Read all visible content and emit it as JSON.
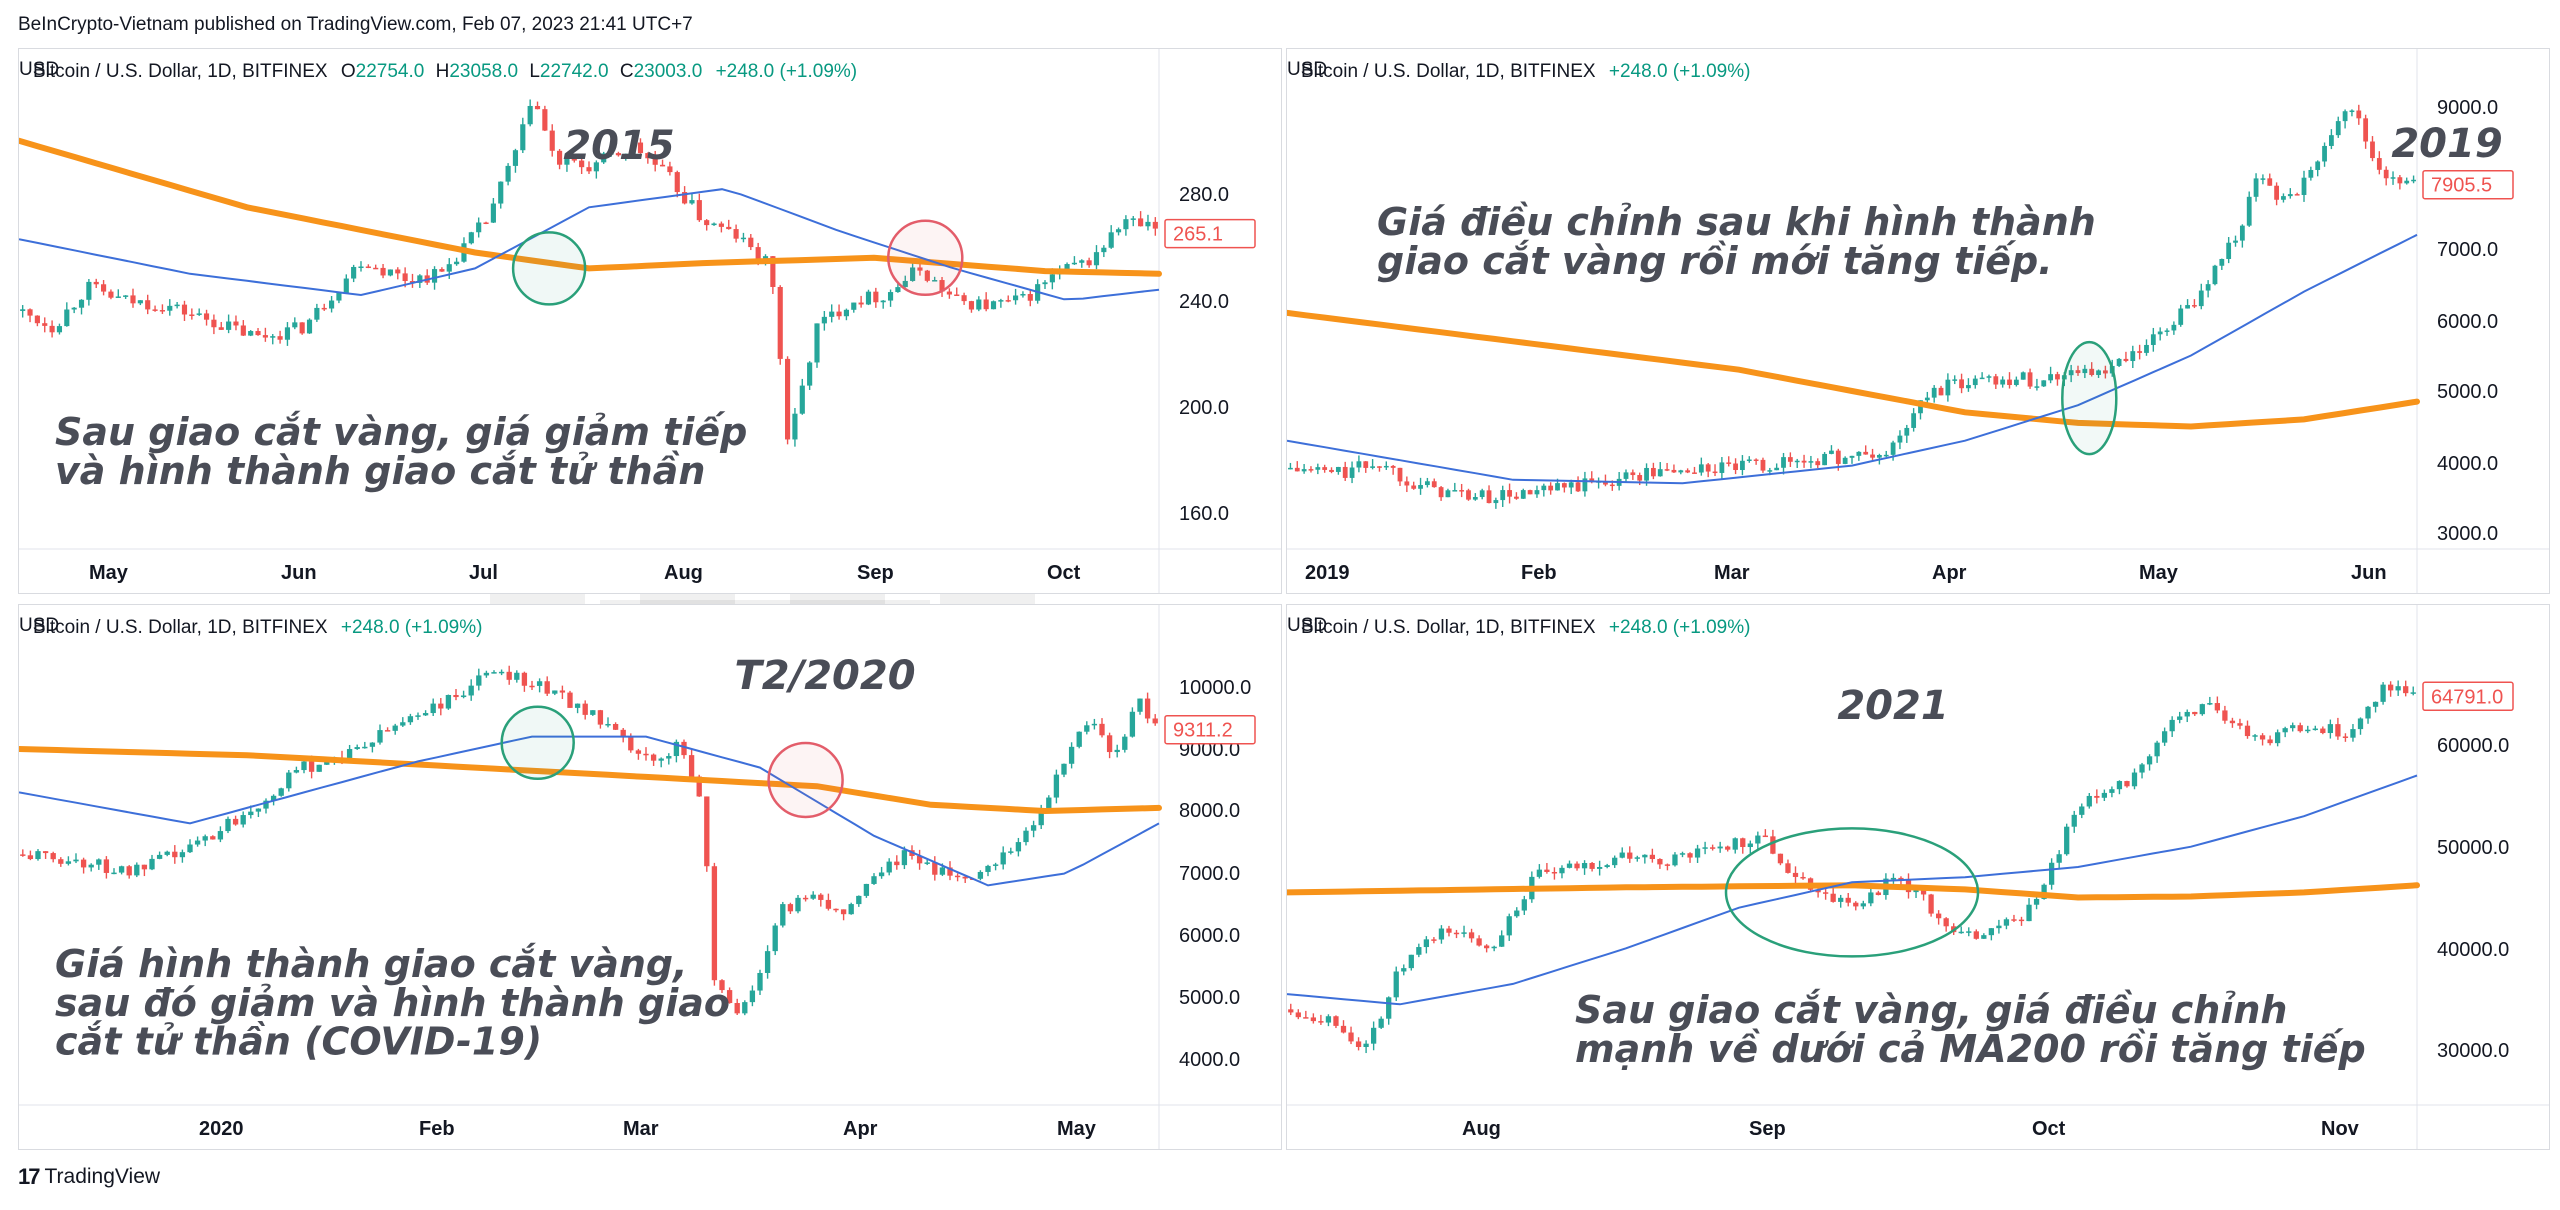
{
  "published": "BeInCrypto-Vietnam published on TradingView.com, Feb 07, 2023 21:41 UTC+7",
  "footer": {
    "brand": "TradingView",
    "logo_icon": "tradingview-logo-icon"
  },
  "watermark": {
    "line1": "be in",
    "line2": "crypto"
  },
  "colors": {
    "up": "#26a69a",
    "down": "#ef5350",
    "ma200": "#f7931a",
    "ma50": "#3d6fd9",
    "gold_cross": "#2aa07a",
    "death_cross": "#e35d6a"
  },
  "chart_data": [
    {
      "type": "candlestick",
      "symbol": "Bitcoin / U.S. Dollar, 1D, BITFINEX",
      "ohlc": {
        "o_label": "O",
        "o": "22754.0",
        "h_label": "H",
        "h": "23058.0",
        "l_label": "L",
        "l": "22742.0",
        "c_label": "C",
        "c": "23003.0"
      },
      "change": "+248.0 (+1.09%)",
      "currency": "USD",
      "year_label": "2015",
      "annotation": [
        "Sau giao cắt vàng, giá giảm tiếp",
        "và hình thành giao cắt tử thần"
      ],
      "x_ticks": [
        "May",
        "Jun",
        "Jul",
        "Aug",
        "Sep",
        "Oct"
      ],
      "y_ticks": [
        "280.0",
        "240.0",
        "200.0",
        "160.0"
      ],
      "y_range": [
        145,
        330
      ],
      "last_price": "265.1",
      "price_path": [
        [
          0,
          236
        ],
        [
          0.03,
          230
        ],
        [
          0.06,
          245
        ],
        [
          0.09,
          240
        ],
        [
          0.13,
          238
        ],
        [
          0.17,
          232
        ],
        [
          0.21,
          226
        ],
        [
          0.25,
          230
        ],
        [
          0.3,
          255
        ],
        [
          0.34,
          248
        ],
        [
          0.37,
          250
        ],
        [
          0.41,
          270
        ],
        [
          0.44,
          300
        ],
        [
          0.45,
          318
        ],
        [
          0.47,
          292
        ],
        [
          0.5,
          290
        ],
        [
          0.54,
          298
        ],
        [
          0.57,
          286
        ],
        [
          0.6,
          270
        ],
        [
          0.63,
          264
        ],
        [
          0.66,
          252
        ],
        [
          0.675,
          185
        ],
        [
          0.7,
          230
        ],
        [
          0.73,
          240
        ],
        [
          0.76,
          242
        ],
        [
          0.79,
          252
        ],
        [
          0.82,
          240
        ],
        [
          0.85,
          238
        ],
        [
          0.88,
          240
        ],
        [
          0.91,
          250
        ],
        [
          0.94,
          255
        ],
        [
          0.97,
          270
        ],
        [
          1.0,
          266
        ]
      ],
      "ma200": [
        [
          0,
          300
        ],
        [
          0.2,
          275
        ],
        [
          0.4,
          258
        ],
        [
          0.5,
          252
        ],
        [
          0.6,
          254
        ],
        [
          0.75,
          256
        ],
        [
          0.9,
          251
        ],
        [
          1.0,
          250
        ]
      ],
      "ma50": [
        [
          0,
          263
        ],
        [
          0.15,
          250
        ],
        [
          0.3,
          242
        ],
        [
          0.4,
          252
        ],
        [
          0.5,
          275
        ],
        [
          0.62,
          282
        ],
        [
          0.72,
          266
        ],
        [
          0.82,
          252
        ],
        [
          0.92,
          240
        ],
        [
          1.0,
          244
        ]
      ],
      "circles": [
        {
          "kind": "gold",
          "t": 0.465,
          "price": 252
        },
        {
          "kind": "death",
          "t": 0.795,
          "price": 256
        }
      ]
    },
    {
      "type": "candlestick",
      "symbol": "Bitcoin / U.S. Dollar, 1D, BITFINEX",
      "change": "+248.0 (+1.09%)",
      "currency": "USD",
      "year_label": "2019",
      "annotation": [
        "Giá điều chỉnh sau khi hình thành",
        "giao cắt vàng rồi mới tăng tiếp."
      ],
      "x_ticks": [
        "2019",
        "Feb",
        "Mar",
        "Apr",
        "May",
        "Jun"
      ],
      "y_ticks": [
        "9000.0",
        "8000.0",
        "7000.0",
        "6000.0",
        "5000.0",
        "4000.0",
        "3000.0"
      ],
      "y_range": [
        2600,
        9600
      ],
      "last_price": "7905.5",
      "price_path": [
        [
          0,
          3900
        ],
        [
          0.05,
          3850
        ],
        [
          0.08,
          4000
        ],
        [
          0.12,
          3650
        ],
        [
          0.17,
          3500
        ],
        [
          0.22,
          3550
        ],
        [
          0.27,
          3700
        ],
        [
          0.32,
          3850
        ],
        [
          0.37,
          3900
        ],
        [
          0.42,
          3950
        ],
        [
          0.47,
          4050
        ],
        [
          0.53,
          4100
        ],
        [
          0.57,
          5000
        ],
        [
          0.62,
          5200
        ],
        [
          0.67,
          5150
        ],
        [
          0.7,
          5350
        ],
        [
          0.72,
          5200
        ],
        [
          0.76,
          5600
        ],
        [
          0.8,
          6200
        ],
        [
          0.84,
          7200
        ],
        [
          0.86,
          8000
        ],
        [
          0.88,
          7700
        ],
        [
          0.9,
          7900
        ],
        [
          0.92,
          8600
        ],
        [
          0.94,
          9100
        ],
        [
          0.96,
          8300
        ],
        [
          0.98,
          7900
        ],
        [
          1.0,
          7905
        ]
      ],
      "ma200": [
        [
          0,
          6100
        ],
        [
          0.2,
          5700
        ],
        [
          0.4,
          5300
        ],
        [
          0.6,
          4700
        ],
        [
          0.7,
          4550
        ],
        [
          0.8,
          4500
        ],
        [
          0.9,
          4600
        ],
        [
          1.0,
          4850
        ]
      ],
      "ma50": [
        [
          0,
          4300
        ],
        [
          0.2,
          3750
        ],
        [
          0.35,
          3700
        ],
        [
          0.5,
          3950
        ],
        [
          0.6,
          4300
        ],
        [
          0.7,
          4800
        ],
        [
          0.8,
          5500
        ],
        [
          0.9,
          6400
        ],
        [
          1.0,
          7200
        ]
      ],
      "circles": [
        {
          "kind": "gold",
          "t": 0.71,
          "price": 4900
        }
      ]
    },
    {
      "type": "candlestick",
      "symbol": "Bitcoin / U.S. Dollar, 1D, BITFINEX",
      "change": "+248.0 (+1.09%)",
      "currency": "USD",
      "year_label": "T2/2020",
      "annotation": [
        "Giá hình thành giao cắt vàng,",
        "sau đó giảm và hình thành giao",
        "cắt tử thần (COVID-19)"
      ],
      "x_ticks": [
        "2020",
        "Feb",
        "Mar",
        "Apr",
        "May"
      ],
      "y_ticks": [
        "10000.0",
        "9000.0",
        "8000.0",
        "7000.0",
        "6000.0",
        "5000.0",
        "4000.0"
      ],
      "y_range": [
        3400,
        10700
      ],
      "last_price": "9311.2",
      "price_path": [
        [
          0,
          7300
        ],
        [
          0.05,
          7200
        ],
        [
          0.1,
          7000
        ],
        [
          0.15,
          7400
        ],
        [
          0.2,
          8000
        ],
        [
          0.25,
          8700
        ],
        [
          0.3,
          9000
        ],
        [
          0.34,
          9500
        ],
        [
          0.38,
          9800
        ],
        [
          0.42,
          10300
        ],
        [
          0.46,
          10000
        ],
        [
          0.5,
          9600
        ],
        [
          0.53,
          9100
        ],
        [
          0.56,
          8700
        ],
        [
          0.58,
          9200
        ],
        [
          0.6,
          8000
        ],
        [
          0.61,
          5300
        ],
        [
          0.63,
          4700
        ],
        [
          0.65,
          5400
        ],
        [
          0.67,
          6400
        ],
        [
          0.7,
          6700
        ],
        [
          0.72,
          6300
        ],
        [
          0.75,
          7000
        ],
        [
          0.78,
          7300
        ],
        [
          0.82,
          6900
        ],
        [
          0.85,
          7100
        ],
        [
          0.88,
          7600
        ],
        [
          0.9,
          8100
        ],
        [
          0.92,
          8900
        ],
        [
          0.94,
          9600
        ],
        [
          0.96,
          8800
        ],
        [
          0.98,
          9800
        ],
        [
          1.0,
          9310
        ]
      ],
      "ma200": [
        [
          0,
          9000
        ],
        [
          0.2,
          8900
        ],
        [
          0.4,
          8700
        ],
        [
          0.6,
          8500
        ],
        [
          0.7,
          8400
        ],
        [
          0.8,
          8100
        ],
        [
          0.9,
          8000
        ],
        [
          1.0,
          8050
        ]
      ],
      "ma50": [
        [
          0,
          8300
        ],
        [
          0.15,
          7800
        ],
        [
          0.25,
          8300
        ],
        [
          0.35,
          8800
        ],
        [
          0.45,
          9200
        ],
        [
          0.55,
          9200
        ],
        [
          0.65,
          8700
        ],
        [
          0.75,
          7600
        ],
        [
          0.85,
          6800
        ],
        [
          0.92,
          7000
        ],
        [
          1.0,
          7800
        ]
      ],
      "circles": [
        {
          "kind": "gold",
          "t": 0.455,
          "price": 9100
        },
        {
          "kind": "death",
          "t": 0.69,
          "price": 8500
        }
      ]
    },
    {
      "type": "candlestick",
      "symbol": "Bitcoin / U.S. Dollar, 1D, BITFINEX",
      "change": "+248.0 (+1.09%)",
      "currency": "USD",
      "year_label": "2021",
      "annotation": [
        "Sau giao cắt vàng, giá điều chỉnh",
        "mạnh về dưới cả MA200 rồi tăng tiếp"
      ],
      "x_ticks": [
        "Aug",
        "Sep",
        "Oct",
        "Nov"
      ],
      "y_ticks": [
        "60000.0",
        "50000.0",
        "40000.0",
        "30000.0"
      ],
      "y_range": [
        26000,
        70000
      ],
      "last_price": "64791.0",
      "price_path": [
        [
          0,
          34000
        ],
        [
          0.04,
          33000
        ],
        [
          0.07,
          30000
        ],
        [
          0.1,
          38000
        ],
        [
          0.14,
          42000
        ],
        [
          0.18,
          40000
        ],
        [
          0.22,
          47000
        ],
        [
          0.26,
          48000
        ],
        [
          0.3,
          49000
        ],
        [
          0.34,
          48500
        ],
        [
          0.38,
          50000
        ],
        [
          0.42,
          51000
        ],
        [
          0.45,
          47000
        ],
        [
          0.5,
          44000
        ],
        [
          0.54,
          47000
        ],
        [
          0.57,
          44000
        ],
        [
          0.59,
          41000
        ],
        [
          0.63,
          42000
        ],
        [
          0.66,
          44000
        ],
        [
          0.7,
          54000
        ],
        [
          0.74,
          56000
        ],
        [
          0.78,
          62000
        ],
        [
          0.82,
          64000
        ],
        [
          0.86,
          60000
        ],
        [
          0.9,
          62000
        ],
        [
          0.94,
          61000
        ],
        [
          0.97,
          66000
        ],
        [
          1.0,
          64791
        ]
      ],
      "ma200": [
        [
          0,
          45500
        ],
        [
          0.3,
          46000
        ],
        [
          0.5,
          46200
        ],
        [
          0.6,
          45800
        ],
        [
          0.7,
          45000
        ],
        [
          0.8,
          45100
        ],
        [
          0.9,
          45500
        ],
        [
          1.0,
          46200
        ]
      ],
      "ma50": [
        [
          0,
          35500
        ],
        [
          0.1,
          34500
        ],
        [
          0.2,
          36500
        ],
        [
          0.3,
          40000
        ],
        [
          0.4,
          44000
        ],
        [
          0.5,
          46500
        ],
        [
          0.6,
          47000
        ],
        [
          0.7,
          48000
        ],
        [
          0.8,
          50000
        ],
        [
          0.9,
          53000
        ],
        [
          1.0,
          57000
        ]
      ],
      "circles": [
        {
          "kind": "ellipse",
          "t": 0.5,
          "price": 45500
        }
      ]
    }
  ]
}
